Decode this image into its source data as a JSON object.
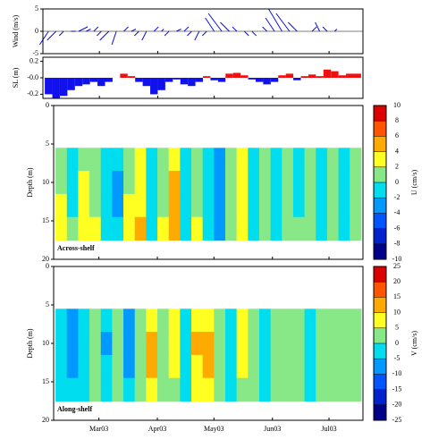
{
  "chart_data": [
    {
      "type": "quiver",
      "ylabel": "Wind (m/s)",
      "xlim": [
        30,
        200
      ],
      "ylim": [
        -5,
        5
      ],
      "yticks": [
        -5,
        0,
        5
      ],
      "color": "#1010e0",
      "x": [
        33,
        37,
        41,
        45,
        49,
        53,
        57,
        61,
        65,
        69,
        73,
        77,
        81,
        85,
        89,
        93,
        97,
        101,
        105,
        109,
        113,
        117,
        121,
        125,
        129,
        133,
        137,
        141,
        145,
        149,
        153,
        157,
        161,
        165,
        169,
        173,
        177,
        181,
        185,
        189,
        193,
        197
      ],
      "v": [
        -3,
        -2,
        -1,
        0,
        1,
        0.5,
        1,
        -1,
        -2,
        -3,
        1,
        0.5,
        -1,
        -2,
        1,
        0.5,
        -1,
        0.5,
        1,
        -1,
        -2,
        -1,
        3,
        4,
        2,
        1,
        -1,
        -1,
        0,
        1,
        3,
        5,
        4,
        2,
        0,
        1,
        2,
        1,
        0.5,
        0,
        0,
        0
      ],
      "u": [
        -2,
        -2,
        -1,
        1,
        2,
        1,
        1,
        -1,
        -2,
        -1,
        1,
        1,
        -1,
        -1,
        1,
        0.5,
        -1,
        1,
        1,
        -1,
        -1,
        -1,
        -2,
        -3,
        -2,
        -1,
        1,
        1,
        0,
        -1,
        -2,
        -3,
        -3,
        -2,
        0,
        1,
        -1,
        -1,
        0.5,
        0,
        0,
        0
      ]
    },
    {
      "type": "area",
      "ylabel": "SL (m)",
      "xlim": [
        30,
        200
      ],
      "ylim": [
        -0.25,
        0.25
      ],
      "yticks": [
        -0.2,
        {
          "value": 0,
          "label": "-0.0"
        },
        0.2
      ],
      "pos_color": "#ee1111",
      "neg_color": "#1111ee",
      "x": [
        33,
        37,
        41,
        45,
        49,
        53,
        57,
        61,
        65,
        69,
        73,
        77,
        81,
        85,
        89,
        93,
        97,
        101,
        105,
        109,
        113,
        117,
        121,
        125,
        129,
        133,
        137,
        141,
        145,
        149,
        153,
        157,
        161,
        165,
        169,
        173,
        177,
        181,
        185,
        189,
        193,
        197
      ],
      "values": [
        -0.2,
        -0.25,
        -0.22,
        -0.15,
        -0.1,
        -0.08,
        -0.05,
        -0.1,
        -0.05,
        0.0,
        0.05,
        0.02,
        -0.05,
        -0.1,
        -0.2,
        -0.15,
        -0.05,
        -0.02,
        -0.08,
        -0.1,
        -0.05,
        0.02,
        -0.03,
        -0.05,
        0.05,
        0.06,
        0.03,
        -0.02,
        -0.05,
        -0.08,
        -0.05,
        0.03,
        0.05,
        -0.03,
        0.02,
        0.04,
        0.02,
        0.1,
        0.08,
        0.03,
        0.05,
        0.05
      ]
    },
    {
      "type": "contourf",
      "ylabel": "Depth (m)",
      "annotation": "Across-shelf",
      "clabel": "U (cm/s)",
      "xlim": [
        36,
        200
      ],
      "ylim": [
        20,
        0
      ],
      "yticks": [
        0,
        5,
        10,
        15,
        20
      ],
      "cticks": [
        -10,
        -8,
        -6,
        -4,
        -2,
        0,
        2,
        4,
        6,
        8,
        10
      ],
      "colors": [
        "#000088",
        "#0022cc",
        "#0055ff",
        "#0099ff",
        "#00ddee",
        "#88e888",
        "#ffff22",
        "#ffaa00",
        "#ff5500",
        "#dd0000"
      ],
      "x": [
        40,
        46,
        52,
        58,
        64,
        70,
        76,
        82,
        88,
        94,
        100,
        106,
        112,
        118,
        124,
        130,
        136,
        142,
        148,
        154,
        160,
        166,
        172,
        178,
        184,
        190,
        196
      ],
      "depth": [
        7,
        10,
        13,
        16
      ],
      "values": [
        [
          1,
          -1,
          1,
          0.5,
          -1,
          -2,
          1,
          2,
          -1,
          0.5,
          3,
          -1,
          1,
          -1,
          -3,
          1,
          2,
          -1,
          0.5,
          -1,
          1,
          -0.5,
          1,
          -1,
          0.5,
          -1,
          0.5
        ],
        [
          1.5,
          -1,
          2,
          1,
          -2,
          -3,
          1.5,
          3,
          -1,
          1,
          4,
          -1,
          1.5,
          -2,
          -3,
          1,
          2,
          -1,
          1,
          -1,
          1,
          -0.5,
          1,
          -1,
          1,
          -1,
          0.5
        ],
        [
          2.5,
          -0.5,
          2,
          1.5,
          -2,
          -3,
          2,
          3.5,
          -2,
          1.5,
          4.5,
          -1,
          1.5,
          -2,
          -4,
          1,
          2.5,
          -1,
          1,
          -1,
          1.5,
          -0.5,
          1,
          -1,
          1,
          -1,
          0.5
        ],
        [
          3,
          1,
          2.5,
          2,
          -1,
          -2,
          2.5,
          4,
          -1,
          2.5,
          5,
          -0.5,
          2,
          -1,
          -3,
          1.5,
          3,
          -0.5,
          1,
          -0.5,
          1.5,
          1,
          1,
          -0.5,
          0.5,
          -1.5,
          1
        ]
      ]
    },
    {
      "type": "contourf",
      "ylabel": "Depth (m)",
      "annotation": "Along-shelf",
      "clabel": "V (cm/s)",
      "xlim": [
        36,
        200
      ],
      "ylim": [
        20,
        0
      ],
      "yticks": [
        0,
        5,
        10,
        15,
        20
      ],
      "xticks": [
        {
          "value": 60,
          "label": "Mar03"
        },
        {
          "value": 91,
          "label": "Apr03"
        },
        {
          "value": 121,
          "label": "May03"
        },
        {
          "value": 152,
          "label": "Jun03"
        },
        {
          "value": 182,
          "label": "Jul03"
        }
      ],
      "cticks": [
        -25,
        -20,
        -15,
        -10,
        -5,
        0,
        5,
        10,
        15,
        20,
        25
      ],
      "colors": [
        "#000088",
        "#0022cc",
        "#0055ff",
        "#0099ff",
        "#00ddee",
        "#88e888",
        "#ffff22",
        "#ffaa00",
        "#ff5500",
        "#dd0000"
      ],
      "x": [
        40,
        46,
        52,
        58,
        64,
        70,
        76,
        82,
        88,
        94,
        100,
        106,
        112,
        118,
        124,
        130,
        136,
        142,
        148,
        154,
        160,
        166,
        172,
        178,
        184,
        190,
        196
      ],
      "depth": [
        7,
        10,
        13,
        16
      ],
      "values": [
        [
          -3,
          -6,
          -2,
          3,
          -4,
          2,
          -6,
          3,
          8,
          3,
          6,
          -3,
          8,
          9,
          4,
          -2,
          6,
          3,
          -2,
          4,
          2,
          3,
          -3,
          2,
          4,
          1,
          2
        ],
        [
          -4,
          -8,
          -3,
          3,
          -6,
          2,
          -7,
          4,
          11,
          3,
          7,
          -3,
          10,
          11,
          4,
          -3,
          7,
          3,
          -3,
          4,
          2,
          3,
          -3,
          2,
          4,
          1,
          2
        ],
        [
          -4,
          -7,
          -3,
          2,
          -5,
          1,
          -6,
          3,
          10,
          2,
          6,
          -2,
          9,
          10,
          3,
          -2,
          6,
          2,
          -2,
          3,
          1,
          2,
          -2,
          1,
          3,
          1,
          1
        ],
        [
          -3,
          -5,
          -2,
          2,
          -4,
          1,
          -4,
          2,
          7,
          2,
          4,
          -2,
          6,
          7,
          2,
          -1,
          4,
          2,
          -1,
          2,
          1,
          2,
          -1,
          1,
          2,
          1,
          1
        ]
      ]
    }
  ]
}
